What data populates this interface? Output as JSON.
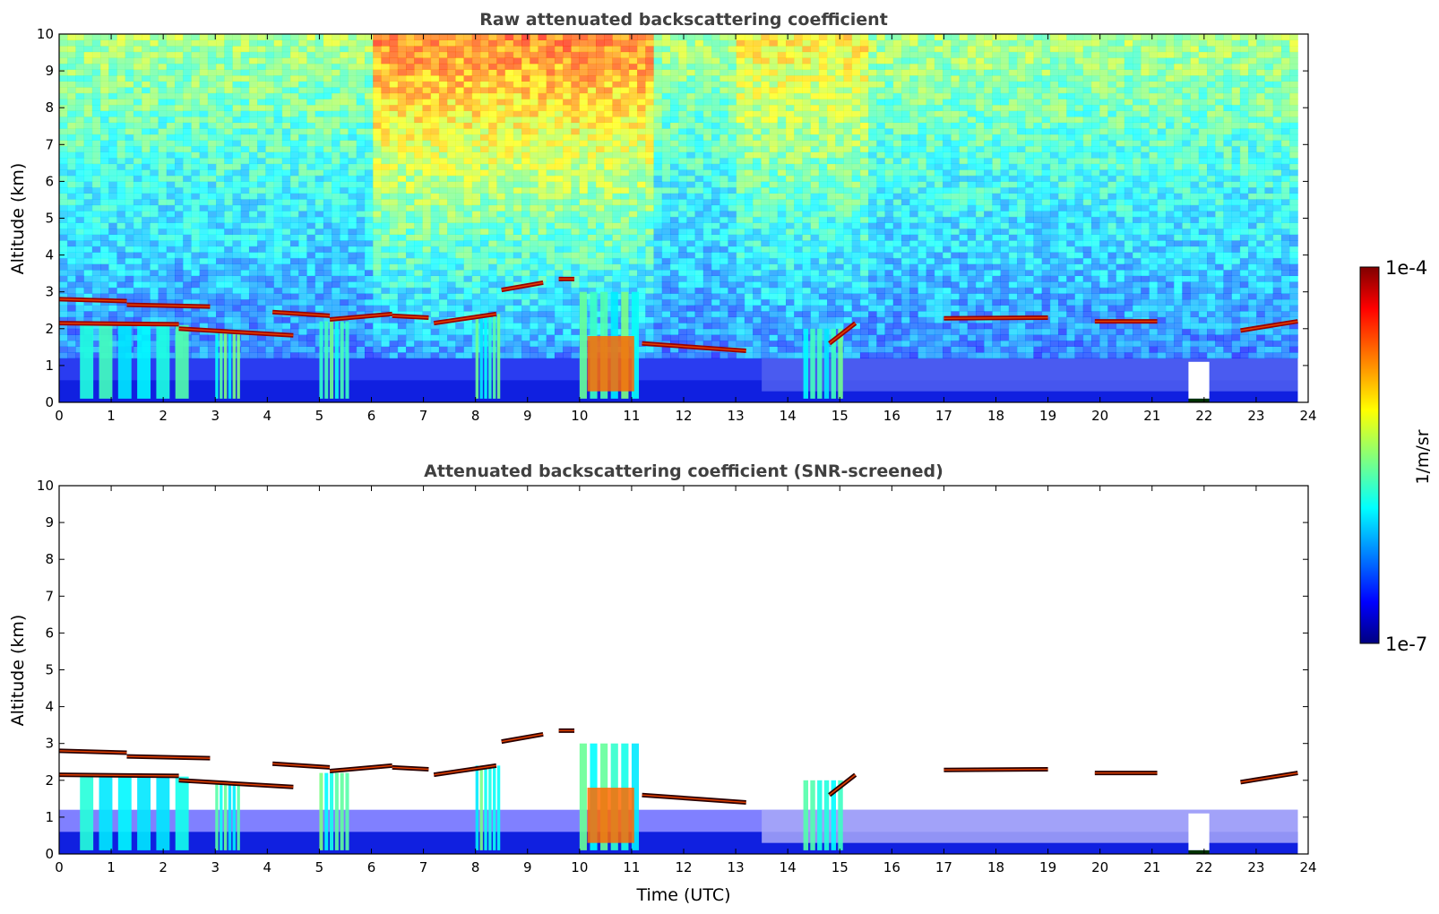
{
  "chart_data": [
    {
      "type": "heatmap",
      "title": "Raw attenuated backscattering coefficient",
      "xlabel": "",
      "ylabel": "Altitude (km)",
      "xlim": [
        0,
        24
      ],
      "ylim": [
        0,
        10
      ],
      "x_ticks": [
        "0",
        "1",
        "2",
        "3",
        "4",
        "5",
        "6",
        "7",
        "8",
        "9",
        "10",
        "11",
        "12",
        "13",
        "14",
        "15",
        "16",
        "17",
        "18",
        "19",
        "20",
        "21",
        "22",
        "23",
        "24"
      ],
      "y_ticks": [
        "0",
        "1",
        "2",
        "3",
        "4",
        "5",
        "6",
        "7",
        "8",
        "9",
        "10"
      ],
      "colorscale": "jet",
      "screened": false,
      "data_end_time": 23.8,
      "cloud_layers": [
        {
          "t_start": 0.0,
          "t_end": 1.3,
          "altitude_start": 2.8,
          "altitude_end": 2.75
        },
        {
          "t_start": 1.3,
          "t_end": 2.9,
          "altitude_start": 2.65,
          "altitude_end": 2.6
        },
        {
          "t_start": 0.0,
          "t_end": 2.3,
          "altitude_start": 2.15,
          "altitude_end": 2.12
        },
        {
          "t_start": 2.3,
          "t_end": 4.5,
          "altitude_start": 2.0,
          "altitude_end": 1.82
        },
        {
          "t_start": 4.1,
          "t_end": 5.2,
          "altitude_start": 2.45,
          "altitude_end": 2.35
        },
        {
          "t_start": 5.2,
          "t_end": 6.4,
          "altitude_start": 2.25,
          "altitude_end": 2.4
        },
        {
          "t_start": 6.4,
          "t_end": 7.1,
          "altitude_start": 2.35,
          "altitude_end": 2.3
        },
        {
          "t_start": 7.2,
          "t_end": 8.4,
          "altitude_start": 2.15,
          "altitude_end": 2.4
        },
        {
          "t_start": 8.5,
          "t_end": 9.3,
          "altitude_start": 3.05,
          "altitude_end": 3.25
        },
        {
          "t_start": 9.6,
          "t_end": 9.9,
          "altitude_start": 3.35,
          "altitude_end": 3.35
        },
        {
          "t_start": 11.2,
          "t_end": 13.2,
          "altitude_start": 1.6,
          "altitude_end": 1.4
        },
        {
          "t_start": 14.8,
          "t_end": 15.3,
          "altitude_start": 1.6,
          "altitude_end": 2.15
        },
        {
          "t_start": 17.0,
          "t_end": 19.0,
          "altitude_start": 2.28,
          "altitude_end": 2.3
        },
        {
          "t_start": 19.9,
          "t_end": 21.1,
          "altitude_start": 2.2,
          "altitude_end": 2.2
        },
        {
          "t_start": 22.7,
          "t_end": 23.8,
          "altitude_start": 1.95,
          "altitude_end": 2.2
        }
      ],
      "precipitation_regions": [
        {
          "t_start": 0.4,
          "t_end": 2.6,
          "altitude_top": 2.1
        },
        {
          "t_start": 3.0,
          "t_end": 3.5,
          "altitude_top": 1.9
        },
        {
          "t_start": 5.0,
          "t_end": 5.6,
          "altitude_top": 2.2
        },
        {
          "t_start": 8.0,
          "t_end": 8.5,
          "altitude_top": 2.4
        },
        {
          "t_start": 10.0,
          "t_end": 11.2,
          "altitude_top": 3.0
        },
        {
          "t_start": 14.3,
          "t_end": 15.1,
          "altitude_top": 2.0
        }
      ],
      "blank_regions": [
        {
          "t_start": 21.7,
          "t_end": 22.1,
          "altitude_start": 0.1,
          "altitude_end": 1.1
        }
      ]
    },
    {
      "type": "heatmap",
      "title": "Attenuated backscattering coefficient (SNR-screened)",
      "xlabel": "Time (UTC)",
      "ylabel": "Altitude (km)",
      "xlim": [
        0,
        24
      ],
      "ylim": [
        0,
        10
      ],
      "x_ticks": [
        "0",
        "1",
        "2",
        "3",
        "4",
        "5",
        "6",
        "7",
        "8",
        "9",
        "10",
        "11",
        "12",
        "13",
        "14",
        "15",
        "16",
        "17",
        "18",
        "19",
        "20",
        "21",
        "22",
        "23",
        "24"
      ],
      "y_ticks": [
        "0",
        "1",
        "2",
        "3",
        "4",
        "5",
        "6",
        "7",
        "8",
        "9",
        "10"
      ],
      "colorscale": "jet",
      "screened": true,
      "data_end_time": 23.8,
      "blank_regions": [
        {
          "t_start": 21.7,
          "t_end": 22.1,
          "altitude_start": 0.1,
          "altitude_end": 1.1
        }
      ]
    }
  ],
  "colorbar": {
    "label": "1/m/sr",
    "max_label": "1e-4",
    "min_label": "1e-7",
    "scale": "log",
    "colors": [
      "#000080",
      "#0000ff",
      "#00ffff",
      "#ffff00",
      "#ff0000",
      "#800000"
    ]
  }
}
